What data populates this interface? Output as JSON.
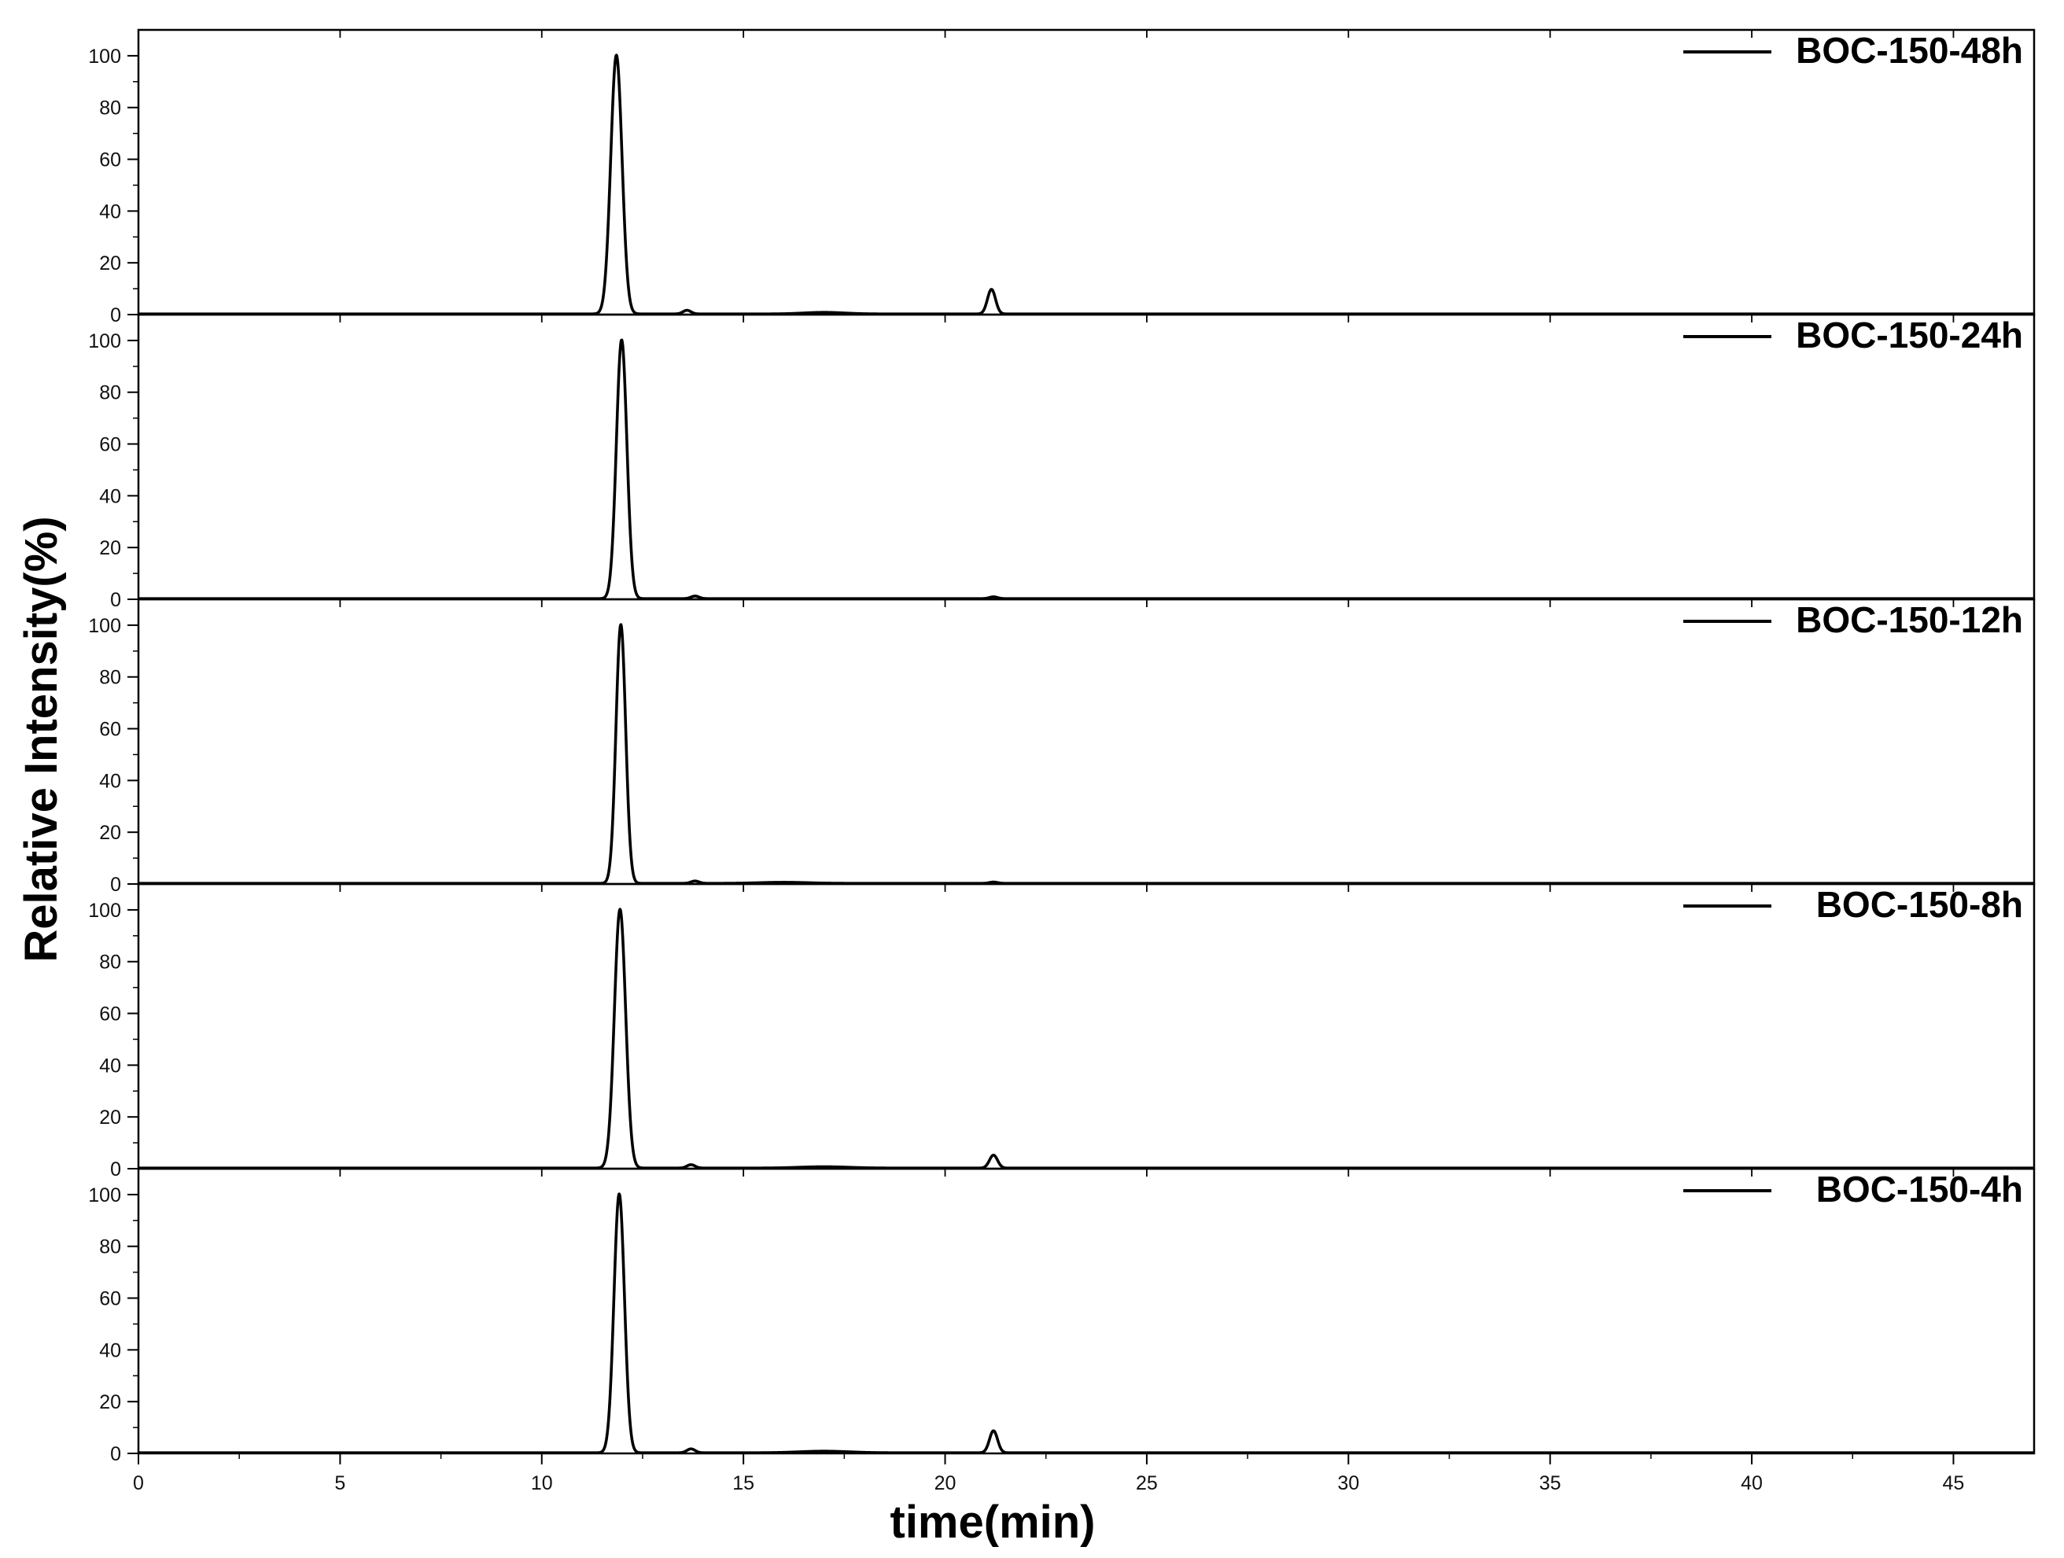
{
  "chart_data": {
    "type": "line",
    "xlabel": "time(min)",
    "ylabel": "Relative Intensity(%)",
    "xlim": [
      0,
      47
    ],
    "ylim": [
      0,
      110
    ],
    "xticks": [
      0,
      5,
      10,
      15,
      20,
      25,
      30,
      35,
      40,
      45
    ],
    "yticks": [
      0,
      20,
      40,
      60,
      80,
      100
    ],
    "legend_position": "top-right",
    "grid": false,
    "panels": [
      {
        "name": "BOC-150-48h",
        "peaks": [
          {
            "x": 11.85,
            "y": 100,
            "width": 0.14
          },
          {
            "x": 13.6,
            "y": 1.4,
            "width": 0.1
          },
          {
            "x": 17.0,
            "y": 0.6,
            "width": 0.5
          },
          {
            "x": 21.15,
            "y": 9.5,
            "width": 0.1
          }
        ]
      },
      {
        "name": "BOC-150-24h",
        "peaks": [
          {
            "x": 11.98,
            "y": 100,
            "width": 0.13
          },
          {
            "x": 13.8,
            "y": 1.0,
            "width": 0.1
          },
          {
            "x": 21.2,
            "y": 0.7,
            "width": 0.1
          }
        ]
      },
      {
        "name": "BOC-150-12h",
        "peaks": [
          {
            "x": 11.96,
            "y": 100,
            "width": 0.12
          },
          {
            "x": 13.8,
            "y": 0.9,
            "width": 0.1
          },
          {
            "x": 16.0,
            "y": 0.4,
            "width": 0.6
          },
          {
            "x": 21.2,
            "y": 0.5,
            "width": 0.1
          }
        ]
      },
      {
        "name": "BOC-150-8h",
        "peaks": [
          {
            "x": 11.94,
            "y": 100,
            "width": 0.14
          },
          {
            "x": 13.7,
            "y": 1.3,
            "width": 0.1
          },
          {
            "x": 17.0,
            "y": 0.5,
            "width": 0.6
          },
          {
            "x": 21.2,
            "y": 5.0,
            "width": 0.1
          }
        ]
      },
      {
        "name": "BOC-150-4h",
        "peaks": [
          {
            "x": 11.92,
            "y": 100,
            "width": 0.13
          },
          {
            "x": 13.7,
            "y": 1.5,
            "width": 0.1
          },
          {
            "x": 17.0,
            "y": 0.6,
            "width": 0.6
          },
          {
            "x": 21.2,
            "y": 8.5,
            "width": 0.1
          }
        ]
      }
    ]
  }
}
